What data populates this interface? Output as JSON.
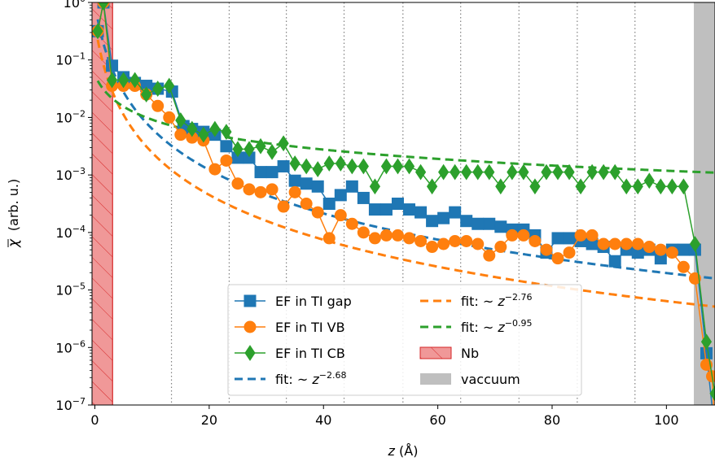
{
  "chart_data": {
    "type": "line",
    "xlabel": "z (Å)",
    "ylabel": "χ̅ (arb. u.)",
    "ylabel_sym": "χ",
    "ylabel_unit": "(arb. u.)",
    "xlabel_sym": "z",
    "xlabel_unit": "(Å)",
    "xlim": [
      -0.5,
      108.5
    ],
    "ylim_exp": [
      -7,
      0
    ],
    "y_scale": "log",
    "x_ticks": [
      0,
      20,
      40,
      60,
      80,
      100
    ],
    "x_tick_labels": [
      "0",
      "20",
      "40",
      "60",
      "80",
      "100"
    ],
    "y_tick_exponents": [
      -7,
      -6,
      -5,
      -4,
      -3,
      -2,
      -1,
      0
    ],
    "y_tick_base": "10",
    "y_tick_exp_labels": [
      "−7",
      "−6",
      "−5",
      "−4",
      "−3",
      "−2",
      "−1",
      "0"
    ],
    "grid_vlines_x": [
      13.4,
      23.5,
      33.5,
      43.6,
      53.9,
      64.0,
      74.2,
      84.4,
      94.5
    ],
    "regions": [
      {
        "name": "Nb",
        "x0": -0.5,
        "x1": 3.1,
        "color": "#f09898",
        "hatch": true
      },
      {
        "name": "vaccuum",
        "x0": 104.8,
        "x1": 108.5,
        "color": "#bfbfbf"
      }
    ],
    "series": [
      {
        "name": "EF in TI gap",
        "color": "#1f77b4",
        "marker": "square",
        "points": [
          [
            0.5,
            -0.5
          ],
          [
            1.5,
            0
          ],
          [
            3,
            -1.1
          ],
          [
            5,
            -1.3
          ],
          [
            7,
            -1.4
          ],
          [
            9,
            -1.45
          ],
          [
            11,
            -1.5
          ],
          [
            13.5,
            -1.55
          ],
          [
            15.5,
            -2.15
          ],
          [
            17,
            -2.2
          ],
          [
            19,
            -2.25
          ],
          [
            21,
            -2.3
          ],
          [
            23,
            -2.5
          ],
          [
            25,
            -2.7
          ],
          [
            27,
            -2.7
          ],
          [
            29,
            -2.95
          ],
          [
            31,
            -2.95
          ],
          [
            33,
            -2.85
          ],
          [
            35,
            -3.1
          ],
          [
            37,
            -3.15
          ],
          [
            39,
            -3.2
          ],
          [
            41,
            -3.5
          ],
          [
            43,
            -3.35
          ],
          [
            45,
            -3.2
          ],
          [
            47,
            -3.4
          ],
          [
            49,
            -3.6
          ],
          [
            51,
            -3.6
          ],
          [
            53,
            -3.5
          ],
          [
            55,
            -3.6
          ],
          [
            57,
            -3.65
          ],
          [
            59,
            -3.8
          ],
          [
            61,
            -3.75
          ],
          [
            63,
            -3.65
          ],
          [
            65,
            -3.8
          ],
          [
            67,
            -3.85
          ],
          [
            69,
            -3.85
          ],
          [
            71,
            -3.9
          ],
          [
            73,
            -3.95
          ],
          [
            75,
            -3.95
          ],
          [
            77,
            -4.05
          ],
          [
            79,
            -4.35
          ],
          [
            81,
            -4.1
          ],
          [
            83,
            -4.1
          ],
          [
            85,
            -4.15
          ],
          [
            87,
            -4.2
          ],
          [
            89,
            -4.25
          ],
          [
            91,
            -4.5
          ],
          [
            93,
            -4.3
          ],
          [
            95,
            -4.35
          ],
          [
            97,
            -4.3
          ],
          [
            99,
            -4.45
          ],
          [
            101,
            -4.3
          ],
          [
            103,
            -4.3
          ],
          [
            105,
            -4.3
          ],
          [
            107,
            -6.1
          ],
          [
            108.5,
            -7.5
          ]
        ]
      },
      {
        "name": "EF in TI VB",
        "color": "#ff7f0e",
        "marker": "circle",
        "points": [
          [
            0.5,
            -0.5
          ],
          [
            1.5,
            0
          ],
          [
            3,
            -1.45
          ],
          [
            5,
            -1.45
          ],
          [
            7,
            -1.45
          ],
          [
            9,
            -1.6
          ],
          [
            11,
            -1.8
          ],
          [
            13,
            -2.0
          ],
          [
            15,
            -2.3
          ],
          [
            17,
            -2.35
          ],
          [
            19,
            -2.4
          ],
          [
            21,
            -2.9
          ],
          [
            23,
            -2.75
          ],
          [
            25,
            -3.15
          ],
          [
            27,
            -3.25
          ],
          [
            29,
            -3.3
          ],
          [
            31,
            -3.25
          ],
          [
            33,
            -3.55
          ],
          [
            35,
            -3.3
          ],
          [
            37,
            -3.5
          ],
          [
            39,
            -3.65
          ],
          [
            41,
            -4.1
          ],
          [
            43,
            -3.7
          ],
          [
            45,
            -3.85
          ],
          [
            47,
            -4.0
          ],
          [
            49,
            -4.1
          ],
          [
            51,
            -4.05
          ],
          [
            53,
            -4.05
          ],
          [
            55,
            -4.1
          ],
          [
            57,
            -4.15
          ],
          [
            59,
            -4.25
          ],
          [
            61,
            -4.2
          ],
          [
            63,
            -4.15
          ],
          [
            65,
            -4.15
          ],
          [
            67,
            -4.2
          ],
          [
            69,
            -4.4
          ],
          [
            71,
            -4.25
          ],
          [
            73,
            -4.05
          ],
          [
            75,
            -4.05
          ],
          [
            77,
            -4.15
          ],
          [
            79,
            -4.3
          ],
          [
            81,
            -4.45
          ],
          [
            83,
            -4.35
          ],
          [
            85,
            -4.05
          ],
          [
            87,
            -4.05
          ],
          [
            89,
            -4.2
          ],
          [
            91,
            -4.2
          ],
          [
            93,
            -4.2
          ],
          [
            95,
            -4.2
          ],
          [
            97,
            -4.25
          ],
          [
            99,
            -4.3
          ],
          [
            101,
            -4.35
          ],
          [
            103,
            -4.6
          ],
          [
            105,
            -4.8
          ],
          [
            107,
            -6.3
          ],
          [
            108,
            -6.5
          ],
          [
            108.5,
            -7.5
          ]
        ]
      },
      {
        "name": "EF in TI CB",
        "color": "#2ca02c",
        "marker": "diamond",
        "points": [
          [
            0.5,
            -0.5
          ],
          [
            1.5,
            0
          ],
          [
            3,
            -1.35
          ],
          [
            5,
            -1.35
          ],
          [
            7,
            -1.35
          ],
          [
            9,
            -1.6
          ],
          [
            11,
            -1.5
          ],
          [
            13,
            -1.45
          ],
          [
            15,
            -2.05
          ],
          [
            17,
            -2.2
          ],
          [
            19,
            -2.3
          ],
          [
            21,
            -2.2
          ],
          [
            23,
            -2.25
          ],
          [
            25,
            -2.55
          ],
          [
            27,
            -2.55
          ],
          [
            29,
            -2.5
          ],
          [
            31,
            -2.6
          ],
          [
            33,
            -2.45
          ],
          [
            35,
            -2.8
          ],
          [
            37,
            -2.85
          ],
          [
            39,
            -2.9
          ],
          [
            41,
            -2.8
          ],
          [
            43,
            -2.8
          ],
          [
            45,
            -2.85
          ],
          [
            47,
            -2.85
          ],
          [
            49,
            -3.2
          ],
          [
            51,
            -2.85
          ],
          [
            53,
            -2.85
          ],
          [
            55,
            -2.85
          ],
          [
            57,
            -2.95
          ],
          [
            59,
            -3.2
          ],
          [
            61,
            -2.95
          ],
          [
            63,
            -2.95
          ],
          [
            65,
            -2.95
          ],
          [
            67,
            -2.95
          ],
          [
            69,
            -2.95
          ],
          [
            71,
            -3.2
          ],
          [
            73,
            -2.95
          ],
          [
            75,
            -2.95
          ],
          [
            77,
            -3.2
          ],
          [
            79,
            -2.95
          ],
          [
            81,
            -2.95
          ],
          [
            83,
            -2.95
          ],
          [
            85,
            -3.2
          ],
          [
            87,
            -2.95
          ],
          [
            89,
            -2.95
          ],
          [
            91,
            -2.95
          ],
          [
            93,
            -3.2
          ],
          [
            95,
            -3.2
          ],
          [
            97,
            -3.1
          ],
          [
            99,
            -3.2
          ],
          [
            101,
            -3.2
          ],
          [
            103,
            -3.2
          ],
          [
            105,
            -4.2
          ],
          [
            107,
            -5.9
          ],
          [
            108.5,
            -6.8
          ]
        ]
      }
    ],
    "fits": [
      {
        "name": "fit: ",
        "exponent_label": "−2.68",
        "color": "#1f77b4",
        "C": 0.3,
        "p": -2.68,
        "z0": 1.8,
        "xstart": 0.5
      },
      {
        "name": "fit: ",
        "exponent_label": "−2.76",
        "color": "#ff7f0e",
        "C": 0.13,
        "p": -2.76,
        "z0": 1.8,
        "xstart": 0.5
      },
      {
        "name": "fit: ",
        "exponent_label": "−0.95",
        "color": "#2ca02c",
        "C": 0.036,
        "p": -0.95,
        "z0": 1.8,
        "xstart": 0.5
      }
    ],
    "legend": {
      "position": "lower-center",
      "approx_prefix": "~",
      "fit_var": "z",
      "items": [
        "EF in TI gap",
        "EF in TI VB",
        "EF in TI CB",
        "fit: ~z^-2.68",
        "fit: ~z^-2.76",
        "fit: ~z^-0.95",
        "Nb",
        "vaccuum"
      ]
    }
  }
}
